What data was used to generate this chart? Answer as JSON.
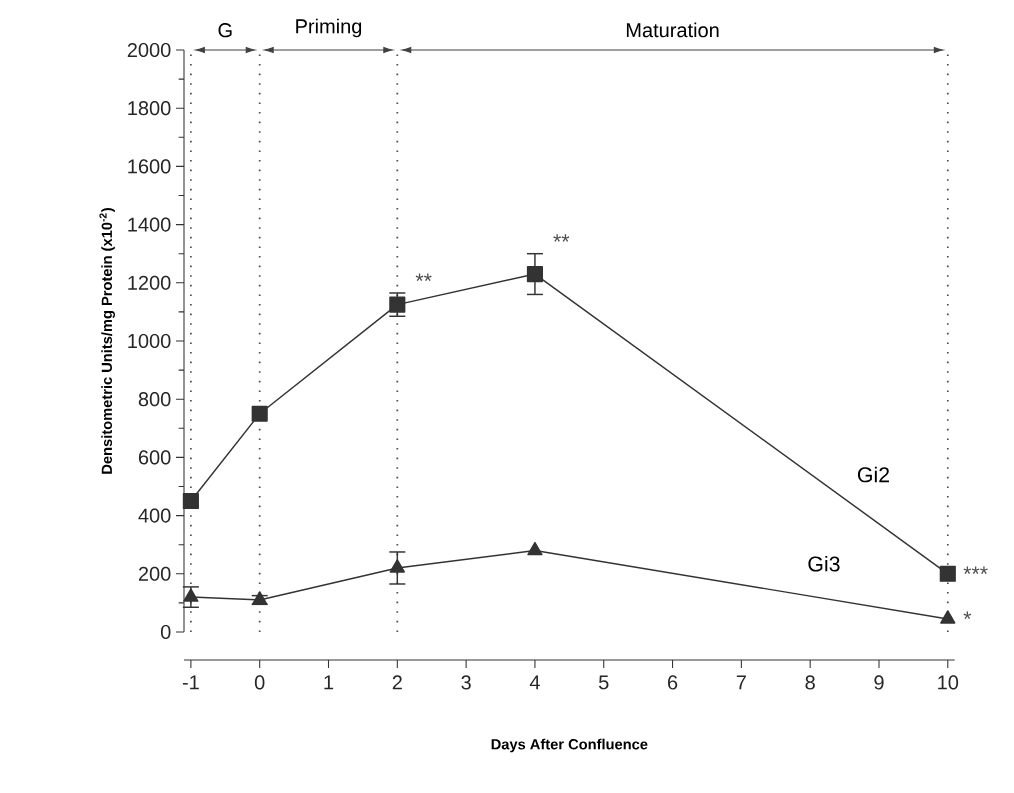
{
  "chart_data": {
    "type": "line",
    "xlabel": "Days After Confluence",
    "ylabel": "Densitometric Units/mg Protein (x10$^{-2}$)",
    "x": [
      -1,
      0,
      2,
      4,
      10
    ],
    "series": [
      {
        "name": "Gi2",
        "color": "#333333",
        "marker": "square",
        "values": [
          450,
          750,
          1125,
          1230,
          200
        ],
        "errors": [
          null,
          null,
          40,
          70,
          null
        ]
      },
      {
        "name": "Gi3",
        "color": "#333333",
        "marker": "triangle",
        "values": [
          120,
          110,
          220,
          280,
          45
        ],
        "errors": [
          35,
          15,
          55,
          null,
          null
        ]
      }
    ],
    "xlim": [
      -1.1,
      10.1
    ],
    "ylim": [
      0,
      2000
    ],
    "xticks": [
      -1,
      0,
      1,
      2,
      3,
      4,
      5,
      6,
      7,
      8,
      9,
      10
    ],
    "yticks": [
      0,
      200,
      400,
      600,
      800,
      1000,
      1200,
      1400,
      1600,
      1800,
      2000
    ],
    "line_style": "solid",
    "grid": false,
    "ref_lines": [
      {
        "axis": "x",
        "value": -1,
        "line_style": "dotted"
      },
      {
        "axis": "x",
        "value": 0,
        "line_style": "dotted"
      },
      {
        "axis": "x",
        "value": 2,
        "line_style": "dotted"
      },
      {
        "axis": "x",
        "value": 10,
        "line_style": "dotted"
      }
    ],
    "annotations": [
      "G",
      "Priming",
      "Maturation",
      {
        "text": "**",
        "x": 2,
        "y": 1125
      },
      {
        "text": "**",
        "x": 4,
        "y": 1230
      },
      {
        "text": "***",
        "x": 10,
        "y": 200
      },
      {
        "text": "*",
        "x": 10,
        "y": 45
      }
    ]
  }
}
